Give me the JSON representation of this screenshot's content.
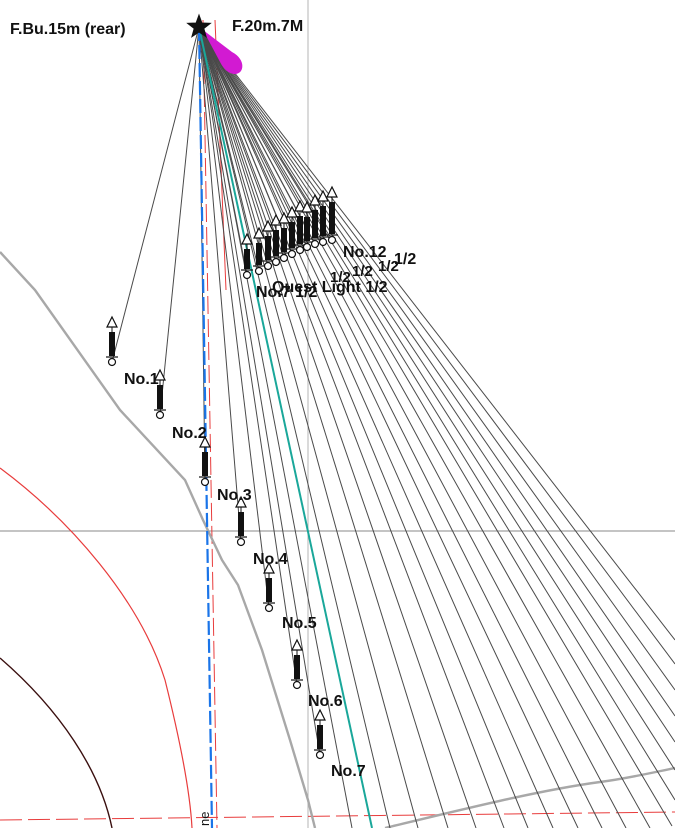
{
  "labels": {
    "rear_light": "F.Bu.15m (rear)",
    "front_light": "F.20m.7M",
    "buoys": [
      "No.1",
      "No.2",
      "No.3",
      "No.4",
      "No.5",
      "No.6",
      "No.7"
    ],
    "cluster": [
      "No.12",
      "1/2",
      "1/2",
      "1/2",
      "1/2",
      "No.7 1/2",
      "Quest Light 1/2"
    ],
    "edge_fragment": "ne"
  },
  "colors": {
    "bearing_lines": "#4a4a4a",
    "coastline": "#a8a8a8",
    "channel_line": "#1a74e8",
    "red_lines": "#e83c3c",
    "dark_contour": "#3a0f0f",
    "teal_line": "#1aa79a",
    "sector": "#d21ad2"
  },
  "icons": [
    "star-icon",
    "buoy-icon",
    "triangle-topmark-icon",
    "sector-icon"
  ]
}
